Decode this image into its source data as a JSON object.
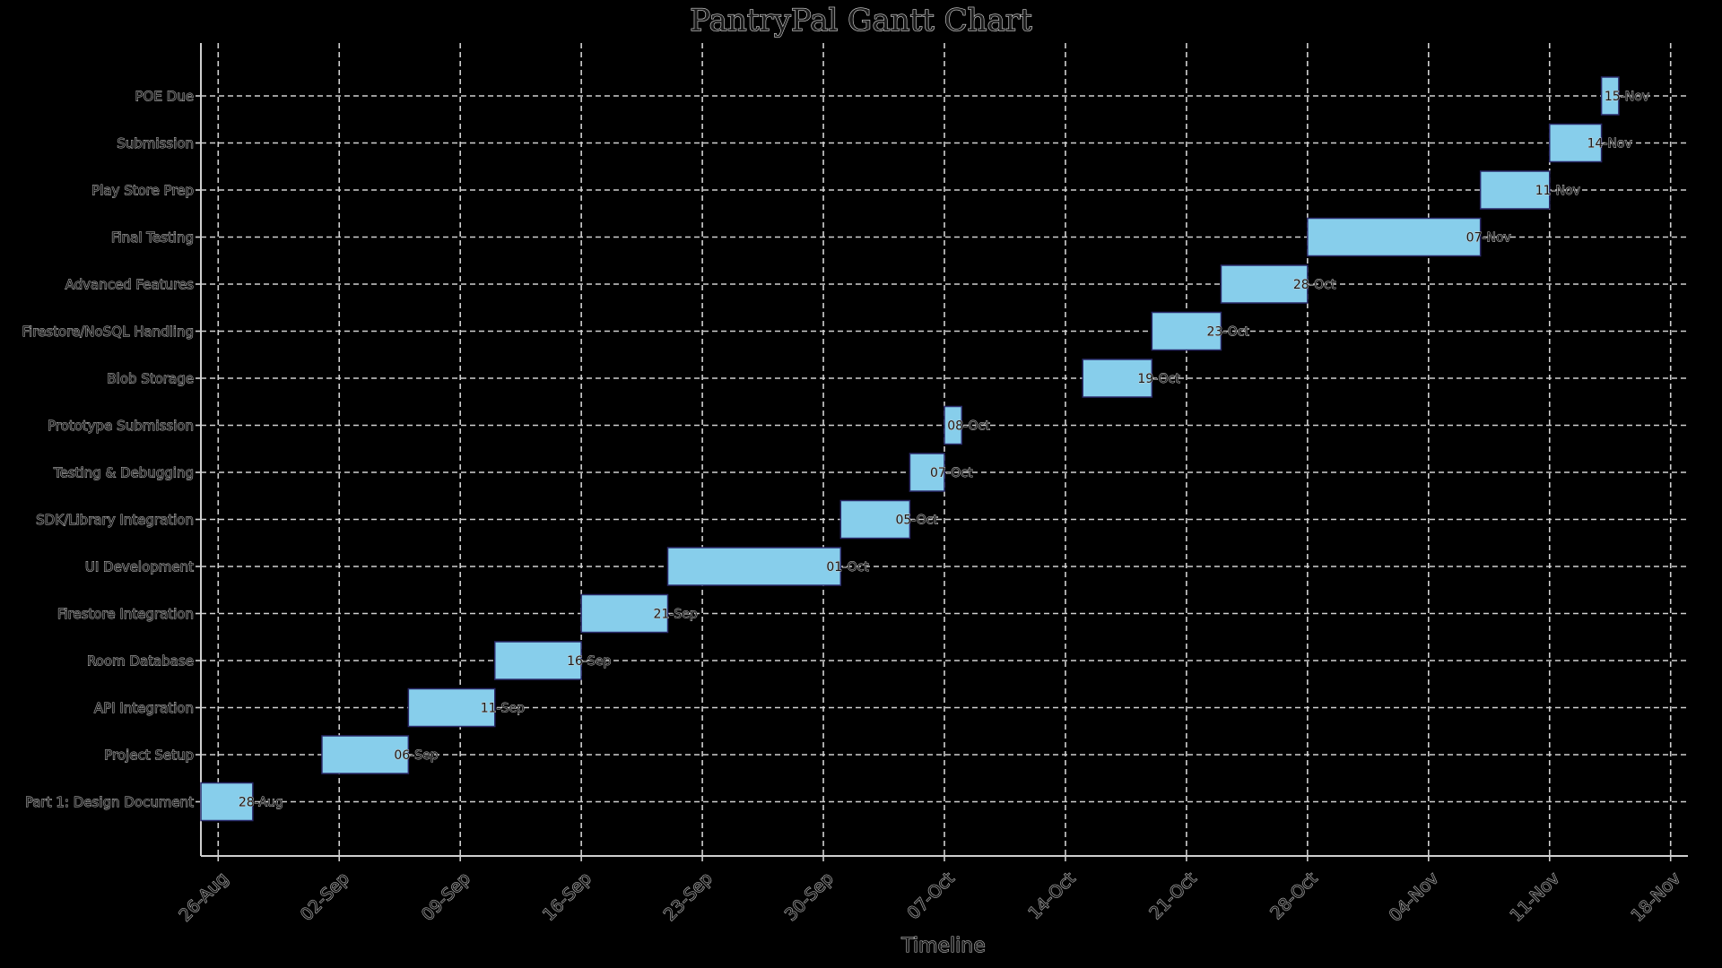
{
  "chart_data": {
    "type": "gantt",
    "title": "PantryPal Gantt Chart",
    "xlabel": "Timeline",
    "ylabel": "",
    "xlim": [
      "2024-08-25",
      "2024-11-19"
    ],
    "x_ticks": [
      "26-Aug",
      "02-Sep",
      "09-Sep",
      "16-Sep",
      "23-Sep",
      "30-Sep",
      "07-Oct",
      "14-Oct",
      "21-Oct",
      "28-Oct",
      "04-Nov",
      "11-Nov",
      "18-Nov"
    ],
    "x_tick_dates": [
      "2024-08-26",
      "2024-09-02",
      "2024-09-09",
      "2024-09-16",
      "2024-09-23",
      "2024-09-30",
      "2024-10-07",
      "2024-10-14",
      "2024-10-21",
      "2024-10-28",
      "2024-11-04",
      "2024-11-11",
      "2024-11-18"
    ],
    "grid": true,
    "bar_color": "#87ceeb",
    "tasks": [
      {
        "name": "Part 1: Design Document",
        "start": "2024-08-25",
        "end": "2024-08-28",
        "end_label": "28-Aug"
      },
      {
        "name": "Project Setup",
        "start": "2024-09-01",
        "end": "2024-09-06",
        "end_label": "06-Sep"
      },
      {
        "name": "API Integration",
        "start": "2024-09-06",
        "end": "2024-09-11",
        "end_label": "11-Sep"
      },
      {
        "name": "Room Database",
        "start": "2024-09-11",
        "end": "2024-09-16",
        "end_label": "16-Sep"
      },
      {
        "name": "Firestore Integration",
        "start": "2024-09-16",
        "end": "2024-09-21",
        "end_label": "21-Sep"
      },
      {
        "name": "UI Development",
        "start": "2024-09-21",
        "end": "2024-10-01",
        "end_label": "01-Oct"
      },
      {
        "name": "SDK/Library Integration",
        "start": "2024-10-01",
        "end": "2024-10-05",
        "end_label": "05-Oct"
      },
      {
        "name": "Testing & Debugging",
        "start": "2024-10-05",
        "end": "2024-10-07",
        "end_label": "07-Oct"
      },
      {
        "name": "Prototype Submission",
        "start": "2024-10-07",
        "end": "2024-10-08",
        "end_label": "08-Oct"
      },
      {
        "name": "Blob Storage",
        "start": "2024-10-15",
        "end": "2024-10-19",
        "end_label": "19-Oct"
      },
      {
        "name": "Firestore/NoSQL Handling",
        "start": "2024-10-19",
        "end": "2024-10-23",
        "end_label": "23-Oct"
      },
      {
        "name": "Advanced Features",
        "start": "2024-10-23",
        "end": "2024-10-28",
        "end_label": "28-Oct"
      },
      {
        "name": "Final Testing",
        "start": "2024-10-28",
        "end": "2024-11-07",
        "end_label": "07-Nov"
      },
      {
        "name": "Play Store Prep",
        "start": "2024-11-07",
        "end": "2024-11-11",
        "end_label": "11-Nov"
      },
      {
        "name": "Submission",
        "start": "2024-11-11",
        "end": "2024-11-14",
        "end_label": "14-Nov"
      },
      {
        "name": "POE Due",
        "start": "2024-11-14",
        "end": "2024-11-15",
        "end_label": "15-Nov"
      }
    ]
  }
}
